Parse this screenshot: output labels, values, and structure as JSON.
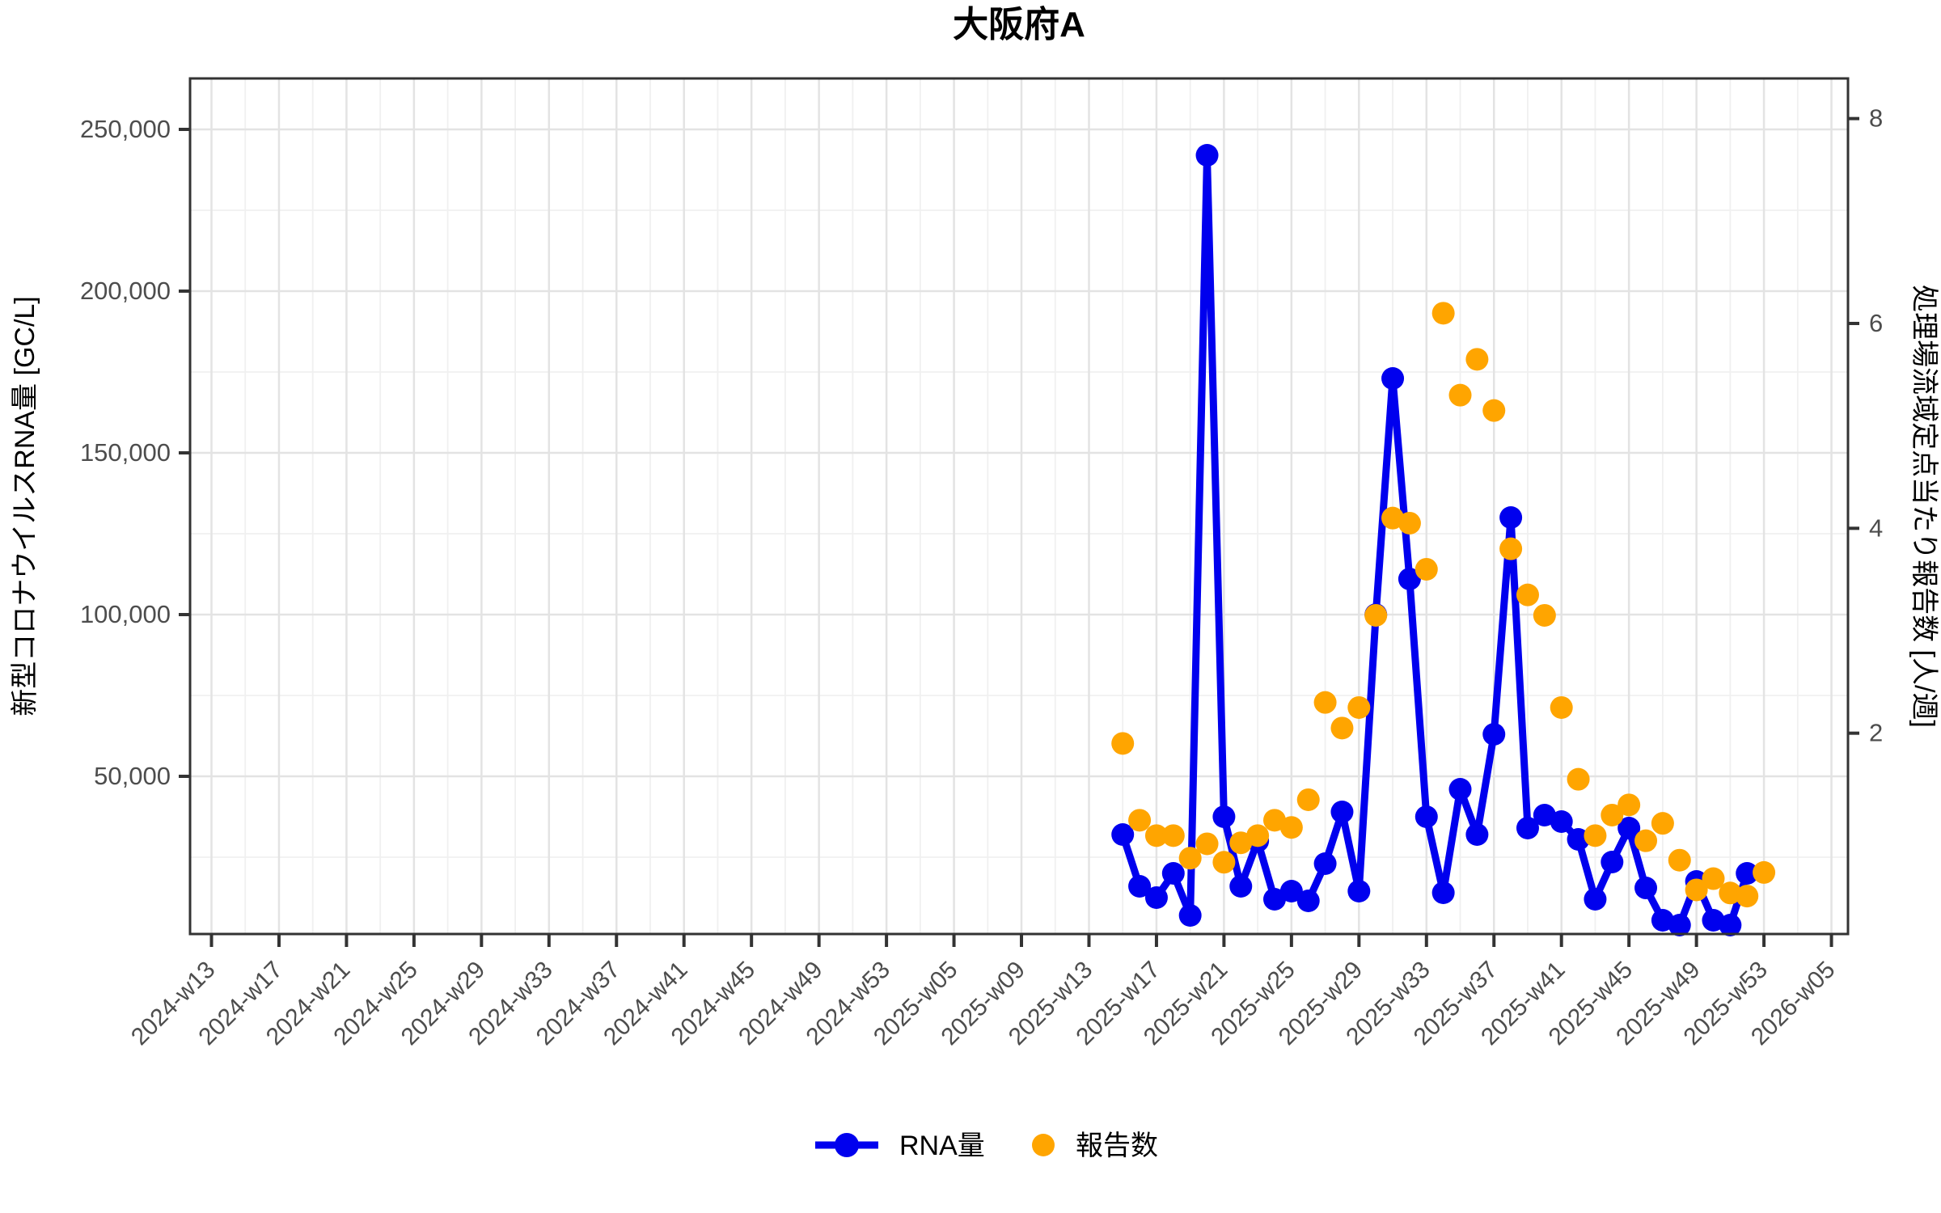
{
  "title": "大阪府A",
  "left_axis": {
    "title": "新型コロナウイルスRNA量 [GC/L]",
    "tick_labels": [
      "50,000",
      "100,000",
      "150,000",
      "200,000",
      "250,000"
    ],
    "tick_values": [
      50000,
      100000,
      150000,
      200000,
      250000
    ]
  },
  "right_axis": {
    "title": "処理場流域定点当たり報告数 [人/週]",
    "tick_labels": [
      "2",
      "4",
      "6",
      "8"
    ],
    "tick_values": [
      2,
      4,
      6,
      8
    ]
  },
  "x_axis": {
    "tick_labels": [
      "2024-w13",
      "2024-w17",
      "2024-w21",
      "2024-w25",
      "2024-w29",
      "2024-w33",
      "2024-w37",
      "2024-w41",
      "2024-w45",
      "2024-w49",
      "2024-w53",
      "2025-w05",
      "2025-w09",
      "2025-w13",
      "2025-w17",
      "2025-w21",
      "2025-w25",
      "2025-w29",
      "2025-w33",
      "2025-w37",
      "2025-w41",
      "2025-w45",
      "2025-w49",
      "2025-w53",
      "2026-w05"
    ]
  },
  "legend": {
    "rna_label": "RNA量",
    "reports_label": "報告数"
  },
  "colors": {
    "rna": "#0000EE",
    "reports": "#FFA500",
    "grid_major": "#E3E3E3",
    "grid_minor": "#F0F0F0",
    "panel_border": "#333333",
    "tick_mark": "#333333",
    "tick_text": "#4D4D4D"
  },
  "chart_data": {
    "type": "line",
    "title": "大阪府A",
    "dual_axis": true,
    "xlabel": "",
    "ylabel_left": "新型コロナウイルスRNA量 [GC/L]",
    "ylabel_right": "処理場流域定点当たり報告数 [人/週]",
    "ylim_left": [
      0,
      265000
    ],
    "ylim_right": [
      0,
      8.4
    ],
    "x_tick_labels": [
      "2024-w13",
      "2024-w17",
      "2024-w21",
      "2024-w25",
      "2024-w29",
      "2024-w33",
      "2024-w37",
      "2024-w41",
      "2024-w45",
      "2024-w49",
      "2024-w53",
      "2025-w05",
      "2025-w09",
      "2025-w13",
      "2025-w17",
      "2025-w21",
      "2025-w25",
      "2025-w29",
      "2025-w33",
      "2025-w37",
      "2025-w41",
      "2025-w45",
      "2025-w49",
      "2025-w53",
      "2026-w05"
    ],
    "grid": true,
    "legend_position": "bottom",
    "series": [
      {
        "name": "RNA量",
        "axis": "left",
        "style": "line+points",
        "color": "#0000EE",
        "weeks": [
          "2025-w15",
          "2025-w16",
          "2025-w17",
          "2025-w18",
          "2025-w19",
          "2025-w20",
          "2025-w21",
          "2025-w22",
          "2025-w23",
          "2025-w24",
          "2025-w25",
          "2025-w26",
          "2025-w27",
          "2025-w28",
          "2025-w29",
          "2025-w30",
          "2025-w31",
          "2025-w32",
          "2025-w33",
          "2025-w34",
          "2025-w35",
          "2025-w36",
          "2025-w37",
          "2025-w38",
          "2025-w39",
          "2025-w40",
          "2025-w41",
          "2025-w42",
          "2025-w43",
          "2025-w44",
          "2025-w45",
          "2025-w46",
          "2025-w47",
          "2025-w48",
          "2025-w49",
          "2025-w50",
          "2025-w51",
          "2025-w52"
        ],
        "values": [
          32000,
          16000,
          12500,
          20000,
          7000,
          242000,
          37500,
          16000,
          30000,
          12000,
          14500,
          11500,
          23000,
          39000,
          14500,
          100000,
          173000,
          111000,
          37500,
          14000,
          46000,
          32000,
          63000,
          130000,
          34000,
          38000,
          36000,
          30500,
          12000,
          23500,
          34000,
          15500,
          5500,
          4000,
          17500,
          5500,
          4000,
          20000
        ]
      },
      {
        "name": "報告数",
        "axis": "right",
        "style": "points",
        "color": "#FFA500",
        "weeks": [
          "2025-w15",
          "2025-w16",
          "2025-w17",
          "2025-w18",
          "2025-w19",
          "2025-w20",
          "2025-w21",
          "2025-w22",
          "2025-w23",
          "2025-w24",
          "2025-w25",
          "2025-w26",
          "2025-w27",
          "2025-w28",
          "2025-w29",
          "2025-w30",
          "2025-w31",
          "2025-w32",
          "2025-w33",
          "2025-w34",
          "2025-w35",
          "2025-w36",
          "2025-w37",
          "2025-w38",
          "2025-w39",
          "2025-w40",
          "2025-w41",
          "2025-w42",
          "2025-w43",
          "2025-w44",
          "2025-w45",
          "2025-w46",
          "2025-w47",
          "2025-w48",
          "2025-w49",
          "2025-w50",
          "2025-w51",
          "2025-w52",
          "2025-w53"
        ],
        "values": [
          1.9,
          1.15,
          1.0,
          1.0,
          0.78,
          0.92,
          0.74,
          0.93,
          1.0,
          1.15,
          1.08,
          1.35,
          2.3,
          2.05,
          2.25,
          3.15,
          4.1,
          4.05,
          3.6,
          6.1,
          5.3,
          5.65,
          5.15,
          3.8,
          3.35,
          3.15,
          2.25,
          1.55,
          1.0,
          1.2,
          1.3,
          0.95,
          1.12,
          0.76,
          0.47,
          0.58,
          0.44,
          0.41,
          0.64
        ]
      }
    ]
  }
}
